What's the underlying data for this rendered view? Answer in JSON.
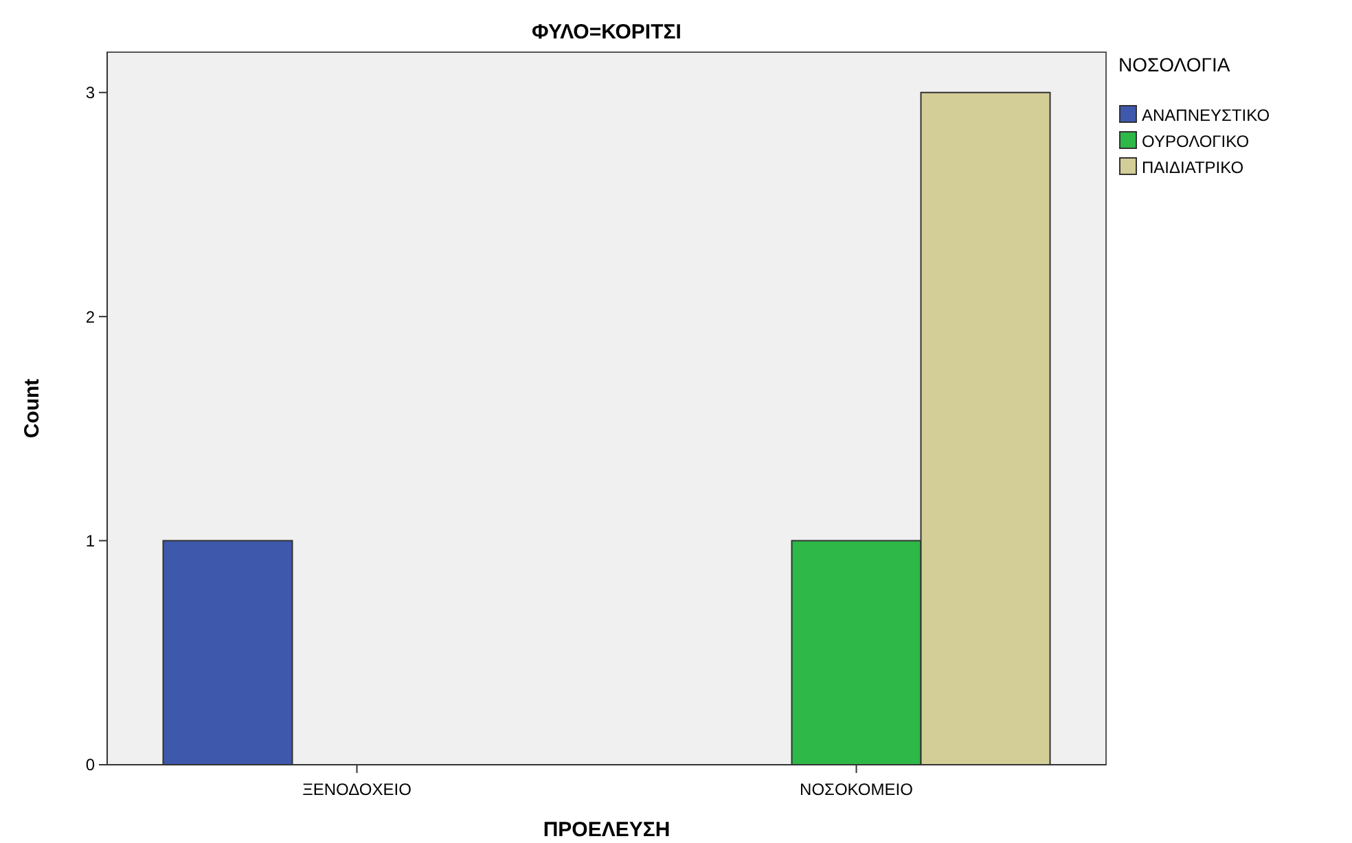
{
  "chart_data": {
    "type": "bar",
    "title": "ΦΥΛΟ=ΚΟΡΙΤΣΙ",
    "xlabel": "ΠΡΟΕΛΕΥΣΗ",
    "ylabel": "Count",
    "legend_title": "ΝΟΣΟΛΟΓΙΑ",
    "categories": [
      "ΞΕΝΟΔΟΧΕΙΟ",
      "ΝΟΣΟΚΟΜΕΙΟ"
    ],
    "series": [
      {
        "name": "ΑΝΑΠΝΕΥΣΤΙΚΟ",
        "color": "#3e58ac",
        "values": [
          1,
          null
        ]
      },
      {
        "name": "ΟΥΡΟΛΟΓΙΚΟ",
        "color": "#2eb848",
        "values": [
          null,
          1
        ]
      },
      {
        "name": "ΠΑΙΔΙΑΤΡΙΚΟ",
        "color": "#d3ce97",
        "values": [
          null,
          3
        ]
      }
    ],
    "ylim": [
      0,
      3.18
    ],
    "yticks": [
      0,
      1,
      2,
      3
    ],
    "grid": false,
    "legend": "right"
  }
}
